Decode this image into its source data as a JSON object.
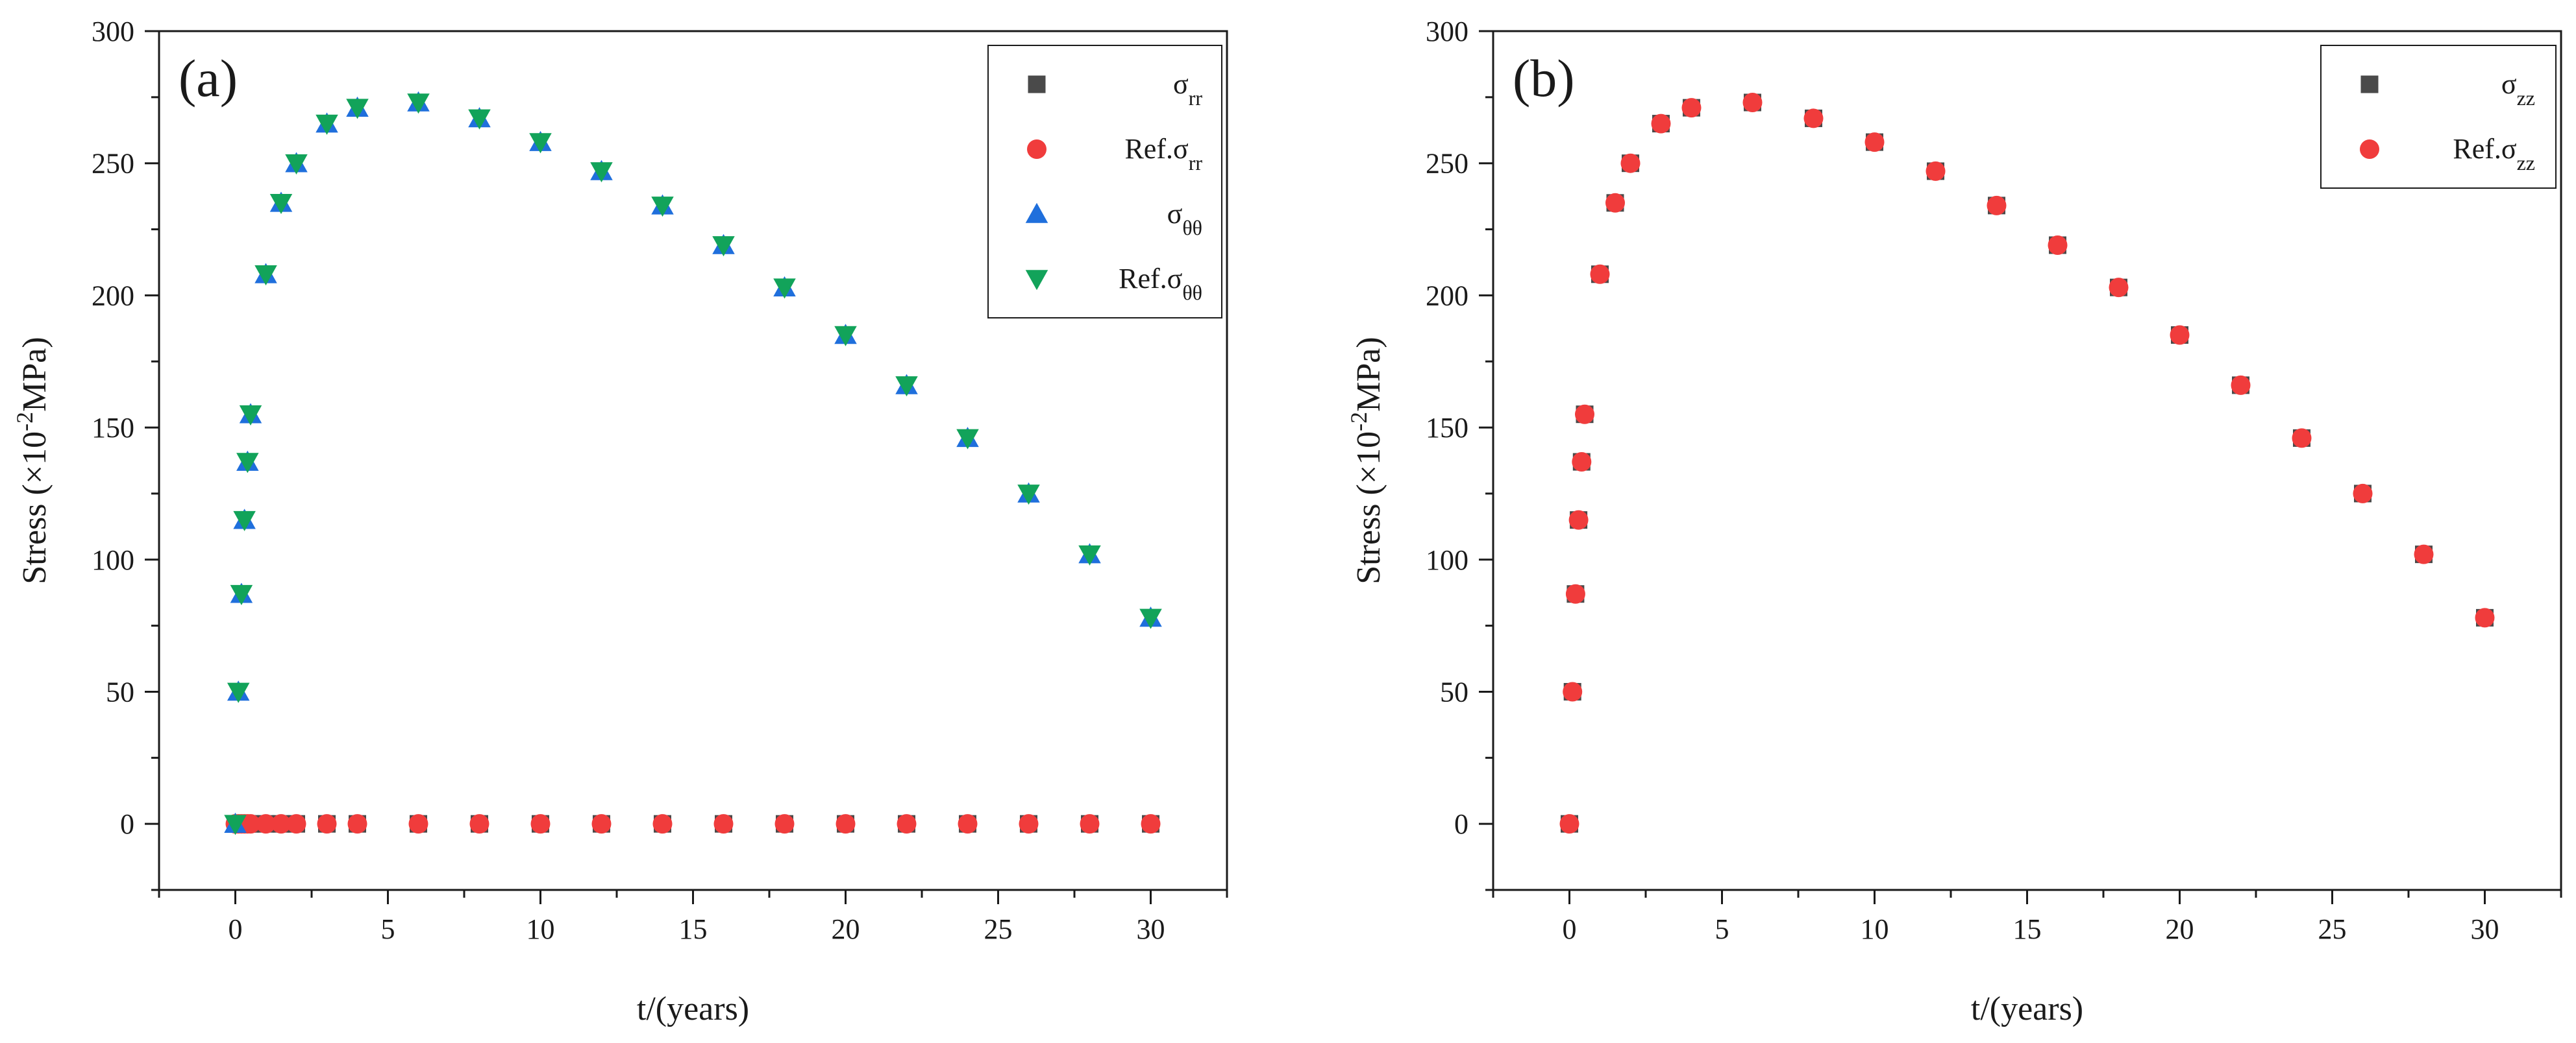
{
  "chart_data": [
    {
      "type": "scatter",
      "panel_label": "(a)",
      "xlabel": "t/(years)",
      "ylabel": "Stress (×10",
      "ylabel_exp": "-2",
      "ylabel_unit": "MPa)",
      "xlim": [
        -2.5,
        32.5
      ],
      "ylim": [
        -25,
        300
      ],
      "xticks": [
        0,
        5,
        10,
        15,
        20,
        25,
        30
      ],
      "yticks": [
        0,
        50,
        100,
        150,
        200,
        250,
        300
      ],
      "legend_position": "top-right",
      "x": [
        0,
        0.1,
        0.2,
        0.3,
        0.4,
        0.5,
        1,
        1.5,
        2,
        3,
        4,
        6,
        8,
        10,
        12,
        14,
        16,
        18,
        20,
        22,
        24,
        26,
        28,
        30
      ],
      "series": [
        {
          "name": "σ",
          "sub": "rr",
          "marker": "square",
          "color": "#4a4a4a",
          "values": [
            0,
            0,
            0,
            0,
            0,
            0,
            0,
            0,
            0,
            0,
            0,
            0,
            0,
            0,
            0,
            0,
            0,
            0,
            0,
            0,
            0,
            0,
            0,
            0
          ]
        },
        {
          "name": "Ref.σ",
          "sub": "rr",
          "marker": "circle",
          "color": "#f03c3c",
          "values": [
            0,
            0,
            0,
            0,
            0,
            0,
            0,
            0,
            0,
            0,
            0,
            0,
            0,
            0,
            0,
            0,
            0,
            0,
            0,
            0,
            0,
            0,
            0,
            0
          ]
        },
        {
          "name": "σ",
          "sub": "θθ",
          "marker": "triangle-up",
          "color": "#1f6fdc",
          "values": [
            0,
            50,
            87,
            115,
            137,
            155,
            208,
            235,
            250,
            265,
            271,
            273,
            267,
            258,
            247,
            234,
            219,
            203,
            185,
            166,
            146,
            125,
            102,
            78
          ]
        },
        {
          "name": "Ref.σ",
          "sub": "θθ",
          "marker": "triangle-down",
          "color": "#12a35a",
          "values": [
            0,
            50,
            87,
            115,
            137,
            155,
            208,
            235,
            250,
            265,
            271,
            273,
            267,
            258,
            247,
            234,
            219,
            203,
            185,
            166,
            146,
            125,
            102,
            78
          ]
        }
      ]
    },
    {
      "type": "scatter",
      "panel_label": "(b)",
      "xlabel": "t/(years)",
      "ylabel": "Stress (×10",
      "ylabel_exp": "-2",
      "ylabel_unit": "MPa)",
      "xlim": [
        -2.5,
        32.5
      ],
      "ylim": [
        -25,
        300
      ],
      "xticks": [
        0,
        5,
        10,
        15,
        20,
        25,
        30
      ],
      "yticks": [
        0,
        50,
        100,
        150,
        200,
        250,
        300
      ],
      "legend_position": "top-right",
      "x": [
        0,
        0.1,
        0.2,
        0.3,
        0.4,
        0.5,
        1,
        1.5,
        2,
        3,
        4,
        6,
        8,
        10,
        12,
        14,
        16,
        18,
        20,
        22,
        24,
        26,
        28,
        30
      ],
      "series": [
        {
          "name": "σ",
          "sub": "zz",
          "marker": "square",
          "color": "#4a4a4a",
          "values": [
            0,
            50,
            87,
            115,
            137,
            155,
            208,
            235,
            250,
            265,
            271,
            273,
            267,
            258,
            247,
            234,
            219,
            203,
            185,
            166,
            146,
            125,
            102,
            78
          ]
        },
        {
          "name": "Ref.σ",
          "sub": "zz",
          "marker": "circle",
          "color": "#f03c3c",
          "values": [
            0,
            50,
            87,
            115,
            137,
            155,
            208,
            235,
            250,
            265,
            271,
            273,
            267,
            258,
            247,
            234,
            219,
            203,
            185,
            166,
            146,
            125,
            102,
            78
          ]
        }
      ]
    }
  ]
}
